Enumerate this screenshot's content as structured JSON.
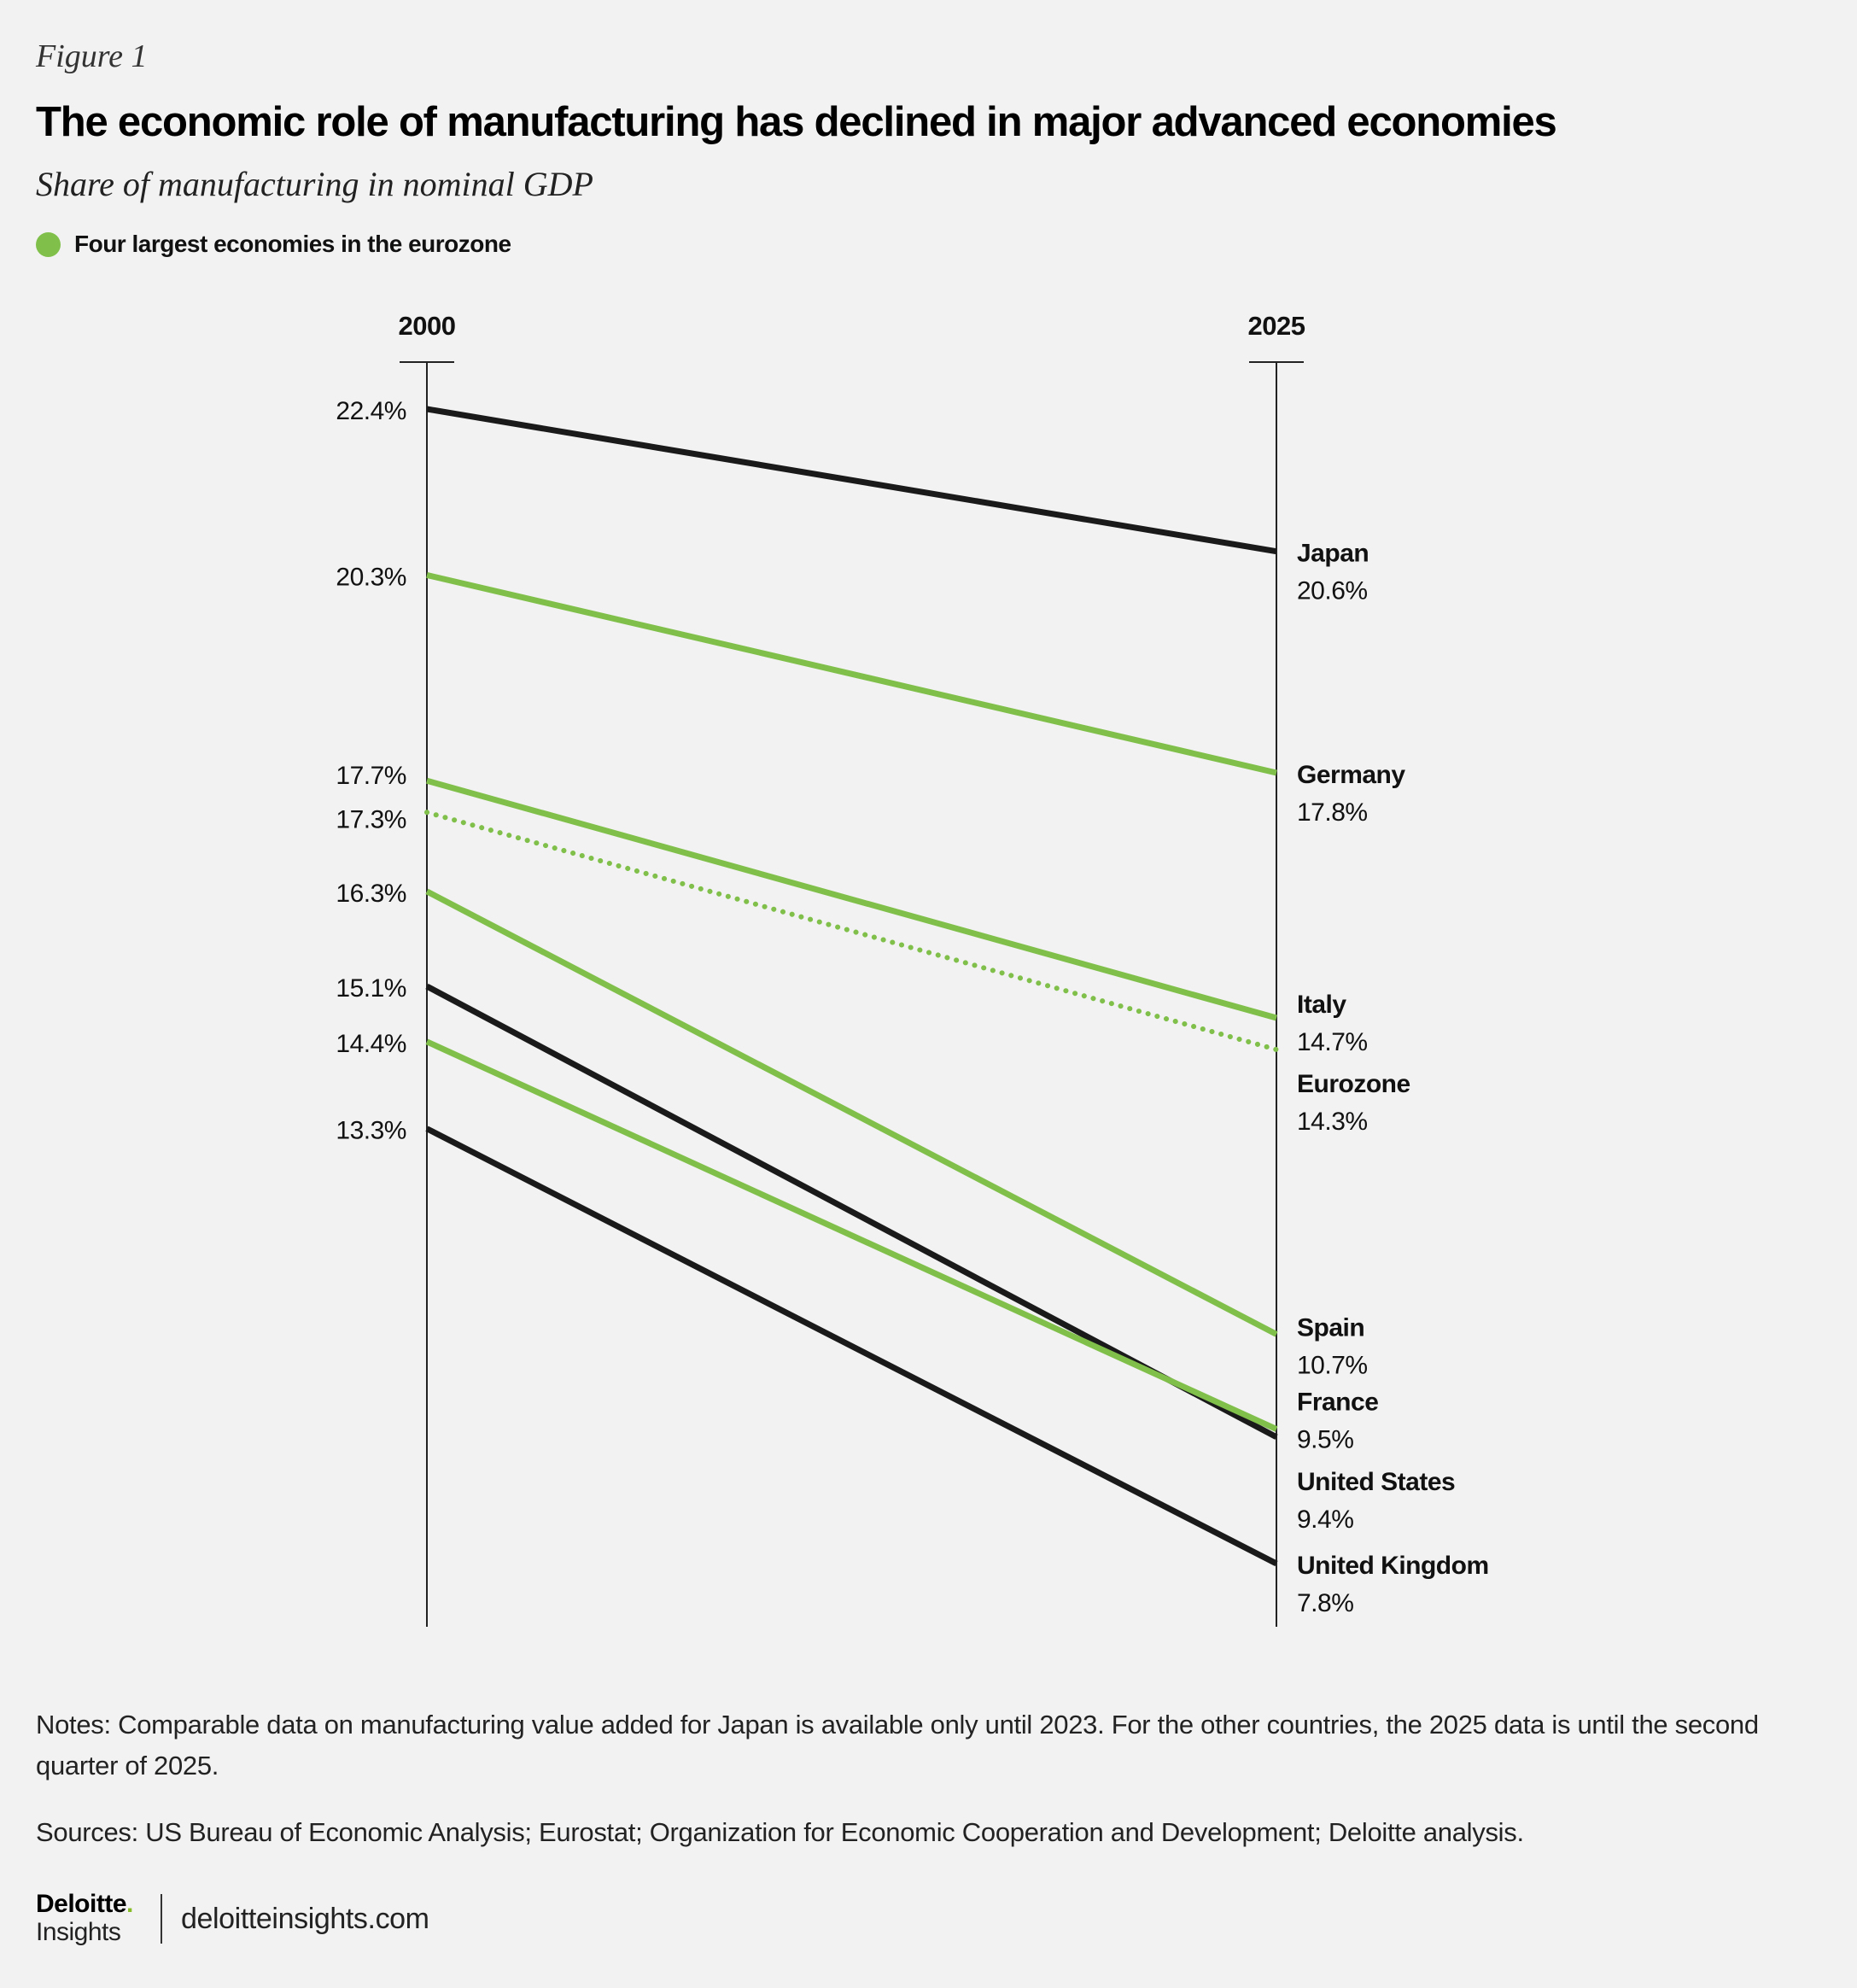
{
  "figure_label": "Figure 1",
  "title": "The economic role of manufacturing has declined in major advanced economies",
  "subtitle": "Share of manufacturing in nominal GDP",
  "legend": {
    "label": "Four largest economies in the eurozone",
    "color": "#80c04a"
  },
  "chart_data": {
    "type": "line",
    "subtype": "slope",
    "categories": [
      "2000",
      "2025"
    ],
    "unit": "%",
    "colors": {
      "eurozone_big4": "#80c04a",
      "other": "#1a1a1a"
    },
    "series": [
      {
        "name": "Japan",
        "values": [
          22.4,
          20.6
        ],
        "start_label": "22.4%",
        "end_label": "20.6%",
        "group": "other",
        "style": "solid"
      },
      {
        "name": "Germany",
        "values": [
          20.3,
          17.8
        ],
        "start_label": "20.3%",
        "end_label": "17.8%",
        "group": "eurozone_big4",
        "style": "solid"
      },
      {
        "name": "Italy",
        "values": [
          17.7,
          14.7
        ],
        "start_label": "17.7%",
        "end_label": "14.7%",
        "group": "eurozone_big4",
        "style": "solid"
      },
      {
        "name": "Eurozone",
        "values": [
          17.3,
          14.3
        ],
        "start_label": "17.3%",
        "end_label": "14.3%",
        "group": "eurozone_big4",
        "style": "dotted"
      },
      {
        "name": "Spain",
        "values": [
          16.3,
          10.7
        ],
        "start_label": "16.3%",
        "end_label": "10.7%",
        "group": "eurozone_big4",
        "style": "solid"
      },
      {
        "name": "United States",
        "values": [
          15.1,
          9.4
        ],
        "start_label": "15.1%",
        "end_label": "9.4%",
        "group": "other",
        "style": "solid"
      },
      {
        "name": "France",
        "values": [
          14.4,
          9.5
        ],
        "start_label": "14.4%",
        "end_label": "9.5%",
        "group": "eurozone_big4",
        "style": "solid"
      },
      {
        "name": "United Kingdom",
        "values": [
          13.3,
          7.8
        ],
        "start_label": "13.3%",
        "end_label": "7.8%",
        "group": "other",
        "style": "solid"
      }
    ],
    "ylim": [
      6.9,
      23.6
    ]
  },
  "notes": "Notes: Comparable data on manufacturing value added for Japan is available only until 2023. For the other countries, the 2025 data is until the second quarter of 2025.",
  "sources": "Sources: US Bureau of Economic Analysis; Eurostat; Organization for Economic Cooperation and Development; Deloitte analysis.",
  "brand": {
    "name": "Deloitte",
    "dot": ".",
    "sub": "Insights",
    "url": "deloitteinsights.com"
  }
}
